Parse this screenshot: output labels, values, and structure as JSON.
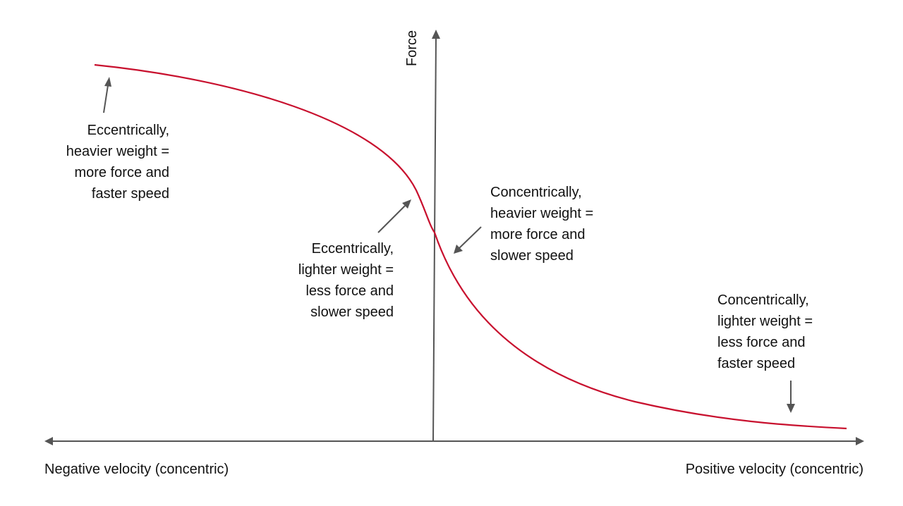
{
  "diagram": {
    "y_axis_label": "Force",
    "x_axis_left_label": "Negative velocity (concentric)",
    "x_axis_right_label": "Positive velocity (concentric)",
    "curve_color": "#c8102e",
    "axis_color": "#555555",
    "annotations": {
      "ecc_heavy": "Eccentrically,\nheavier weight =\nmore force and\nfaster speed",
      "ecc_light": "Eccentrically,\nlighter weight =\nless force and\nslower speed",
      "con_heavy": "Concentrically,\nheavier weight =\nmore force and\nslower speed",
      "con_light": "Concentrically,\nlighter weight =\nless force and\nfaster speed"
    }
  }
}
